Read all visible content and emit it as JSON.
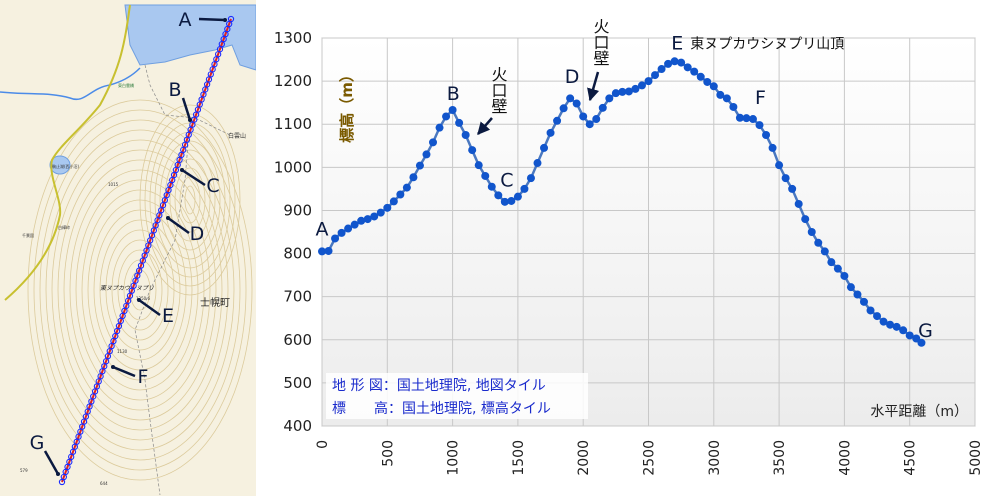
{
  "map": {
    "markers": [
      {
        "label": "A"
      },
      {
        "label": "B"
      },
      {
        "label": "C"
      },
      {
        "label": "D"
      },
      {
        "label": "E"
      },
      {
        "label": "F"
      },
      {
        "label": "G"
      }
    ],
    "town_label": "士幌町",
    "peak_name": "東ヌプカウシヌプリ",
    "small_labels": [
      "白雲山",
      "駒止湖(西小沼)",
      "白樺峠",
      "千景園",
      "東白雲橋",
      "1015",
      "1250.6",
      "1130",
      "579",
      "644"
    ],
    "colors": {
      "route_outer": "#1a2bff",
      "route_inner": "#e02020",
      "lake": "#a9c8f0",
      "land": "#f6f1e0",
      "contour": "#d9c89a"
    }
  },
  "chart_data": {
    "type": "line",
    "title": "",
    "xlabel": "水平距離（m）",
    "ylabel": "標高（m）",
    "xlim": [
      0,
      5000
    ],
    "ylim": [
      400,
      1300
    ],
    "xticks": [
      "0",
      "500",
      "1000",
      "1500",
      "2000",
      "2500",
      "3000",
      "3500",
      "4000",
      "4500",
      "5000"
    ],
    "yticks": [
      "400",
      "500",
      "600",
      "700",
      "800",
      "900",
      "1000",
      "1100",
      "1200",
      "1300"
    ],
    "grid": true,
    "series": [
      {
        "name": "標高",
        "color": "#1155cc",
        "x": [
          0,
          50,
          100,
          150,
          200,
          250,
          300,
          350,
          400,
          450,
          500,
          550,
          600,
          650,
          700,
          750,
          800,
          850,
          900,
          950,
          1000,
          1050,
          1100,
          1150,
          1200,
          1250,
          1300,
          1350,
          1400,
          1450,
          1500,
          1550,
          1600,
          1650,
          1700,
          1750,
          1800,
          1850,
          1900,
          1950,
          2000,
          2050,
          2100,
          2150,
          2200,
          2250,
          2300,
          2350,
          2400,
          2450,
          2500,
          2550,
          2600,
          2650,
          2700,
          2750,
          2800,
          2850,
          2900,
          2950,
          3000,
          3050,
          3100,
          3150,
          3200,
          3250,
          3300,
          3350,
          3400,
          3450,
          3500,
          3550,
          3600,
          3650,
          3700,
          3750,
          3800,
          3850,
          3900,
          3950,
          4000,
          4050,
          4100,
          4150,
          4200,
          4250,
          4300,
          4350,
          4400,
          4450,
          4500,
          4550,
          4590
        ],
        "y": [
          805,
          806,
          835,
          848,
          858,
          867,
          876,
          880,
          886,
          895,
          906,
          921,
          937,
          953,
          977,
          1004,
          1030,
          1058,
          1092,
          1118,
          1133,
          1103,
          1075,
          1040,
          1005,
          980,
          955,
          935,
          920,
          922,
          932,
          950,
          975,
          1010,
          1045,
          1080,
          1108,
          1137,
          1160,
          1148,
          1118,
          1100,
          1112,
          1138,
          1160,
          1172,
          1175,
          1176,
          1182,
          1190,
          1200,
          1214,
          1228,
          1240,
          1246,
          1243,
          1232,
          1222,
          1210,
          1198,
          1188,
          1168,
          1160,
          1140,
          1115,
          1114,
          1112,
          1098,
          1075,
          1045,
          1005,
          975,
          950,
          915,
          880,
          850,
          825,
          805,
          780,
          765,
          748,
          722,
          705,
          688,
          668,
          655,
          642,
          635,
          630,
          622,
          610,
          603,
          593
        ]
      }
    ],
    "annotations": [
      {
        "label": "A",
        "x": 0,
        "y": 805
      },
      {
        "label": "B",
        "x": 1005,
        "y": 1133
      },
      {
        "label": "C",
        "x": 1416,
        "y": 919
      },
      {
        "label": "D",
        "x": 1915,
        "y": 1163
      },
      {
        "label": "E",
        "x": 2720,
        "y": 1246,
        "text": "東ヌプカウシヌプリ山頂"
      },
      {
        "label": "F",
        "x": 3250,
        "y": 1114
      },
      {
        "label": "G",
        "x": 4590,
        "y": 593
      },
      {
        "text": "火口壁",
        "x": 1181,
        "y": 1015
      },
      {
        "text": "火口壁",
        "x": 2055,
        "y": 1100
      }
    ],
    "source_notes": [
      "地 形 図：国土地理院, 地図タイル",
      "標　　高：国土地理院, 標高タイル"
    ]
  }
}
